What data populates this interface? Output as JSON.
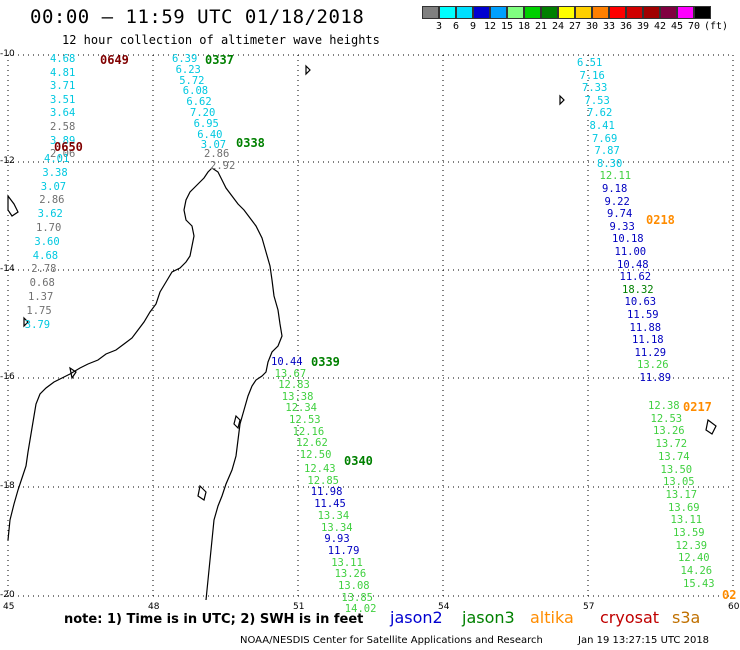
{
  "header": {
    "title": "00:00 – 11:59 UTC 01/18/2018",
    "subtitle": "12 hour collection of altimeter wave heights"
  },
  "scale": {
    "unit": "(ft)",
    "colors": [
      "#808080",
      "#00ffff",
      "#00e0ff",
      "#0000d0",
      "#00a0ff",
      "#80ff80",
      "#00d000",
      "#008000",
      "#ffff00",
      "#ffd000",
      "#ff8000",
      "#ff0000",
      "#d00000",
      "#a00000",
      "#800040",
      "#ff00ff",
      "#000000"
    ],
    "labels": [
      "3",
      "6",
      "9",
      "12",
      "15",
      "18",
      "21",
      "24",
      "27",
      "30",
      "33",
      "36",
      "39",
      "42",
      "45",
      "70"
    ]
  },
  "axes": {
    "lat_labels": [
      "-10",
      "-12",
      "-14",
      "-16",
      "-18",
      "-20"
    ],
    "lon_labels": [
      "45",
      "48",
      "51",
      "54",
      "57",
      "60"
    ]
  },
  "tracks": [
    {
      "pass": "0649",
      "pass_color": "#800000",
      "satellite": "cryosat",
      "points": [
        {
          "v": "4.68",
          "c": "#00c8e0"
        },
        {
          "v": "4.81",
          "c": "#00c8e0"
        },
        {
          "v": "3.71",
          "c": "#00c8e0"
        },
        {
          "v": "3.51",
          "c": "#00c8e0"
        },
        {
          "v": "3.64",
          "c": "#00c8e0"
        },
        {
          "v": "2.58",
          "c": "#707070"
        },
        {
          "v": "3.89",
          "c": "#00c8e0"
        },
        {
          "v": "2.06",
          "c": "#707070"
        }
      ]
    },
    {
      "pass": "0650",
      "pass_color": "#800000",
      "satellite": "cryosat",
      "points": [
        {
          "v": "4.01",
          "c": "#00c8e0"
        },
        {
          "v": "3.38",
          "c": "#00c8e0"
        },
        {
          "v": "3.07",
          "c": "#00c8e0"
        },
        {
          "v": "2.86",
          "c": "#707070"
        },
        {
          "v": "3.62",
          "c": "#00c8e0"
        },
        {
          "v": "1.70",
          "c": "#707070"
        },
        {
          "v": "3.60",
          "c": "#00c8e0"
        },
        {
          "v": "4.68",
          "c": "#00c8e0"
        },
        {
          "v": "2.78",
          "c": "#707070"
        },
        {
          "v": "0.68",
          "c": "#707070"
        },
        {
          "v": "1.37",
          "c": "#707070"
        },
        {
          "v": "1.75",
          "c": "#707070"
        },
        {
          "v": "3.79",
          "c": "#00c8e0"
        }
      ]
    },
    {
      "pass": "0337",
      "pass_color": "#008000",
      "satellite": "jason3",
      "points": [
        {
          "v": "6.39",
          "c": "#00c8e0"
        },
        {
          "v": "6.23",
          "c": "#00c8e0"
        },
        {
          "v": "5.72",
          "c": "#00c8e0"
        },
        {
          "v": "6.08",
          "c": "#00c8e0"
        },
        {
          "v": "6.62",
          "c": "#00c8e0"
        },
        {
          "v": "7.20",
          "c": "#00c8e0"
        },
        {
          "v": "6.95",
          "c": "#00c8e0"
        },
        {
          "v": "6.40",
          "c": "#00c8e0"
        },
        {
          "v": "3.07",
          "c": "#00c8e0"
        }
      ]
    },
    {
      "pass": "0338",
      "pass_color": "#008000",
      "satellite": "jason3",
      "points": [
        {
          "v": "2.86",
          "c": "#707070"
        },
        {
          "v": "2.92",
          "c": "#707070"
        }
      ]
    },
    {
      "pass": "0339",
      "pass_color": "#008000",
      "satellite": "jason3",
      "points": [
        {
          "v": "10.44",
          "c": "#0000c0"
        },
        {
          "v": "13.67",
          "c": "#40d040"
        },
        {
          "v": "12.83",
          "c": "#40d040"
        },
        {
          "v": "13.38",
          "c": "#40d040"
        },
        {
          "v": "12.34",
          "c": "#40d040"
        },
        {
          "v": "12.53",
          "c": "#40d040"
        },
        {
          "v": "12.16",
          "c": "#40d040"
        },
        {
          "v": "12.62",
          "c": "#40d040"
        },
        {
          "v": "12.50",
          "c": "#40d040"
        }
      ]
    },
    {
      "pass": "0340",
      "pass_color": "#008000",
      "satellite": "jason3",
      "points": [
        {
          "v": "12.43",
          "c": "#40d040"
        },
        {
          "v": "12.85",
          "c": "#40d040"
        },
        {
          "v": "11.98",
          "c": "#0000c0"
        },
        {
          "v": "11.45",
          "c": "#0000c0"
        },
        {
          "v": "13.34",
          "c": "#40d040"
        },
        {
          "v": "13.34",
          "c": "#40d040"
        },
        {
          "v": "9.93",
          "c": "#0000c0"
        },
        {
          "v": "11.79",
          "c": "#0000c0"
        },
        {
          "v": "13.11",
          "c": "#40d040"
        },
        {
          "v": "13.26",
          "c": "#40d040"
        },
        {
          "v": "13.08",
          "c": "#40d040"
        },
        {
          "v": "13.85",
          "c": "#40d040"
        },
        {
          "v": "14.02",
          "c": "#40d040"
        }
      ]
    },
    {
      "pass": "0218",
      "pass_color": "#ff8c00",
      "satellite": "altika",
      "points": [
        {
          "v": "6.51",
          "c": "#00c8e0"
        },
        {
          "v": "7.16",
          "c": "#00c8e0"
        },
        {
          "v": "7.33",
          "c": "#00c8e0"
        },
        {
          "v": "7.53",
          "c": "#00c8e0"
        },
        {
          "v": "7.62",
          "c": "#00c8e0"
        },
        {
          "v": "8.41",
          "c": "#00c8e0"
        },
        {
          "v": "7.69",
          "c": "#00c8e0"
        },
        {
          "v": "7.87",
          "c": "#00c8e0"
        },
        {
          "v": "8.30",
          "c": "#00c8e0"
        },
        {
          "v": "12.11",
          "c": "#40d040"
        },
        {
          "v": "9.18",
          "c": "#0000c0"
        },
        {
          "v": "9.22",
          "c": "#0000c0"
        },
        {
          "v": "9.74",
          "c": "#0000c0"
        },
        {
          "v": "9.33",
          "c": "#0000c0"
        },
        {
          "v": "10.18",
          "c": "#0000c0"
        },
        {
          "v": "11.00",
          "c": "#0000c0"
        },
        {
          "v": "10.48",
          "c": "#0000c0"
        },
        {
          "v": "11.62",
          "c": "#0000c0"
        },
        {
          "v": "18.32",
          "c": "#008000"
        },
        {
          "v": "10.63",
          "c": "#0000c0"
        },
        {
          "v": "11.59",
          "c": "#0000c0"
        },
        {
          "v": "11.88",
          "c": "#0000c0"
        },
        {
          "v": "11.18",
          "c": "#0000c0"
        },
        {
          "v": "11.29",
          "c": "#0000c0"
        },
        {
          "v": "13.26",
          "c": "#40d040"
        },
        {
          "v": "11.89",
          "c": "#0000c0"
        }
      ]
    },
    {
      "pass": "0217",
      "pass_color": "#ff8c00",
      "satellite": "altika",
      "points": [
        {
          "v": "12.38",
          "c": "#40d040"
        },
        {
          "v": "12.53",
          "c": "#40d040"
        },
        {
          "v": "13.26",
          "c": "#40d040"
        },
        {
          "v": "13.72",
          "c": "#40d040"
        },
        {
          "v": "13.74",
          "c": "#40d040"
        },
        {
          "v": "13.50",
          "c": "#40d040"
        },
        {
          "v": "13.05",
          "c": "#40d040"
        },
        {
          "v": "13.17",
          "c": "#40d040"
        },
        {
          "v": "13.69",
          "c": "#40d040"
        },
        {
          "v": "13.11",
          "c": "#40d040"
        },
        {
          "v": "13.59",
          "c": "#40d040"
        },
        {
          "v": "12.39",
          "c": "#40d040"
        },
        {
          "v": "12.40",
          "c": "#40d040"
        },
        {
          "v": "14.26",
          "c": "#40d040"
        },
        {
          "v": "15.43",
          "c": "#40d040"
        }
      ]
    },
    {
      "pass": "02",
      "pass_color": "#ff8c00",
      "satellite": "altika",
      "points": []
    }
  ],
  "footer": {
    "note": "note: 1) Time is in UTC; 2) SWH is in feet",
    "satellites": [
      {
        "name": "jason2",
        "color": "#0000d0"
      },
      {
        "name": "jason3",
        "color": "#008000"
      },
      {
        "name": "altika",
        "color": "#ff8c00"
      },
      {
        "name": "cryosat",
        "color": "#c00000"
      },
      {
        "name": "s3a",
        "color": "#c07000"
      }
    ],
    "credit": "NOAA/NESDIS Center for Satellite Applications and Research",
    "timestamp": "Jan 19 13:27:15 UTC 2018"
  }
}
